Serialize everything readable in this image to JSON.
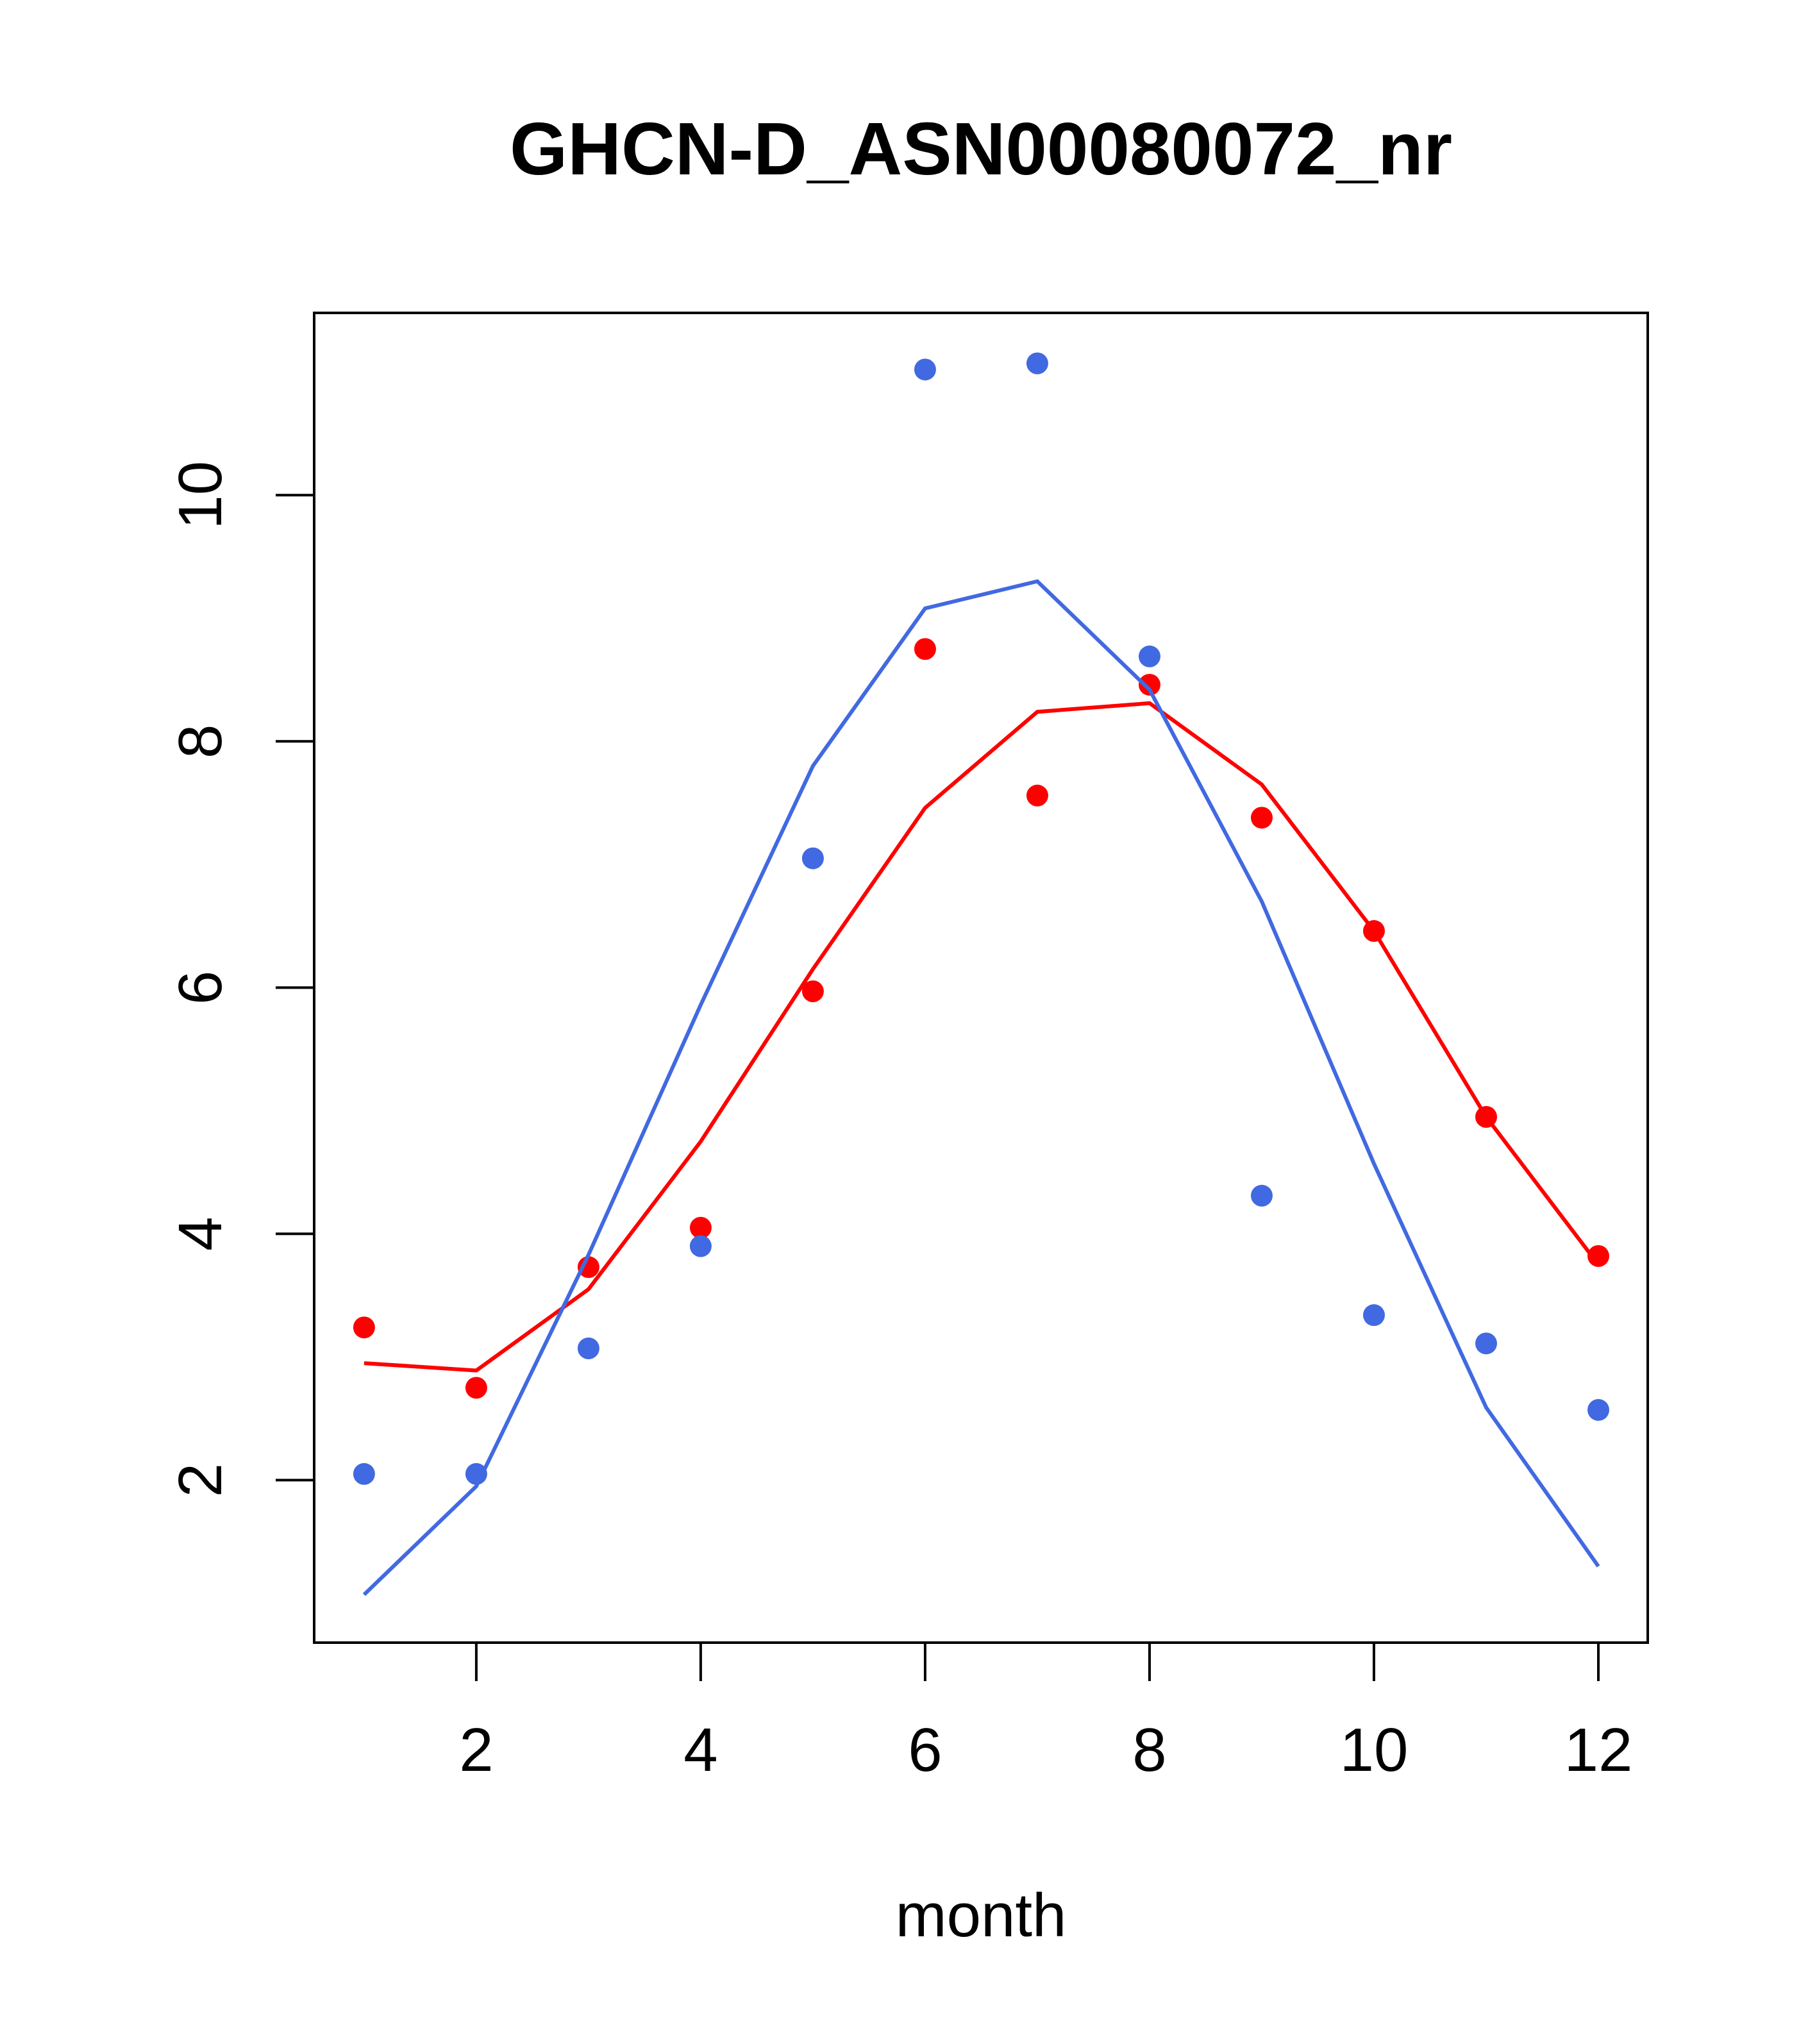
{
  "chart_data": {
    "type": "scatter",
    "title": "GHCN-D_ASN00080072_nr",
    "xlabel": "month",
    "ylabel": "",
    "xlim": [
      0.555,
      12.44
    ],
    "ylim": [
      0.68,
      11.48
    ],
    "xticks": [
      2,
      4,
      6,
      8,
      10,
      12
    ],
    "yticks": [
      2,
      4,
      6,
      8,
      10
    ],
    "grid": false,
    "x": [
      1,
      2,
      3,
      4,
      5,
      6,
      7,
      8,
      9,
      10,
      11,
      12
    ],
    "series": [
      {
        "name": "red points",
        "kind": "points",
        "color": "#ff0000",
        "values": [
          3.24,
          2.75,
          3.73,
          4.05,
          5.97,
          8.75,
          7.56,
          8.46,
          7.38,
          6.46,
          4.95,
          3.82
        ]
      },
      {
        "name": "red line",
        "kind": "line",
        "color": "#ff0000",
        "values": [
          2.95,
          2.89,
          3.55,
          4.75,
          6.15,
          7.46,
          8.24,
          8.31,
          7.65,
          6.46,
          4.95,
          3.75
        ]
      },
      {
        "name": "blue points",
        "kind": "points",
        "color": "#4169e1",
        "values": [
          2.05,
          2.05,
          3.07,
          3.9,
          7.05,
          11.02,
          11.07,
          8.69,
          4.31,
          3.34,
          3.11,
          2.57
        ]
      },
      {
        "name": "blue line",
        "kind": "line",
        "color": "#4169e1",
        "values": [
          1.07,
          1.95,
          3.83,
          5.86,
          7.8,
          9.08,
          9.3,
          8.42,
          6.7,
          4.57,
          2.59,
          1.3
        ]
      }
    ]
  }
}
